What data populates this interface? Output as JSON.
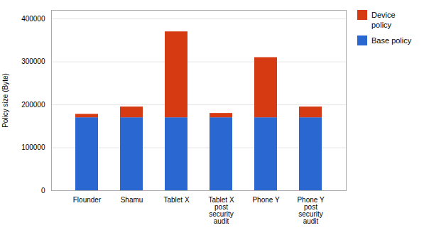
{
  "chart_data": {
    "type": "bar",
    "stacked": true,
    "categories": [
      "Flounder",
      "Shamu",
      "Tablet X",
      "Tablet X\npost\nsecurity\naudit",
      "Phone Y",
      "Phone Y\npost\nsecurity\naudit"
    ],
    "series": [
      {
        "name": "Base policy",
        "color": "#2b67d1",
        "values": [
          170000,
          170000,
          170000,
          170000,
          170000,
          170000
        ]
      },
      {
        "name": "Device\npolicy",
        "color": "#d63a12",
        "values": [
          8000,
          25000,
          200000,
          10000,
          140000,
          25000
        ]
      }
    ],
    "ylabel": "Policy size (Byte)",
    "ylim": [
      0,
      420000
    ],
    "yticks": [
      0,
      100000,
      200000,
      300000,
      400000
    ],
    "grid": true,
    "legend": "upper right"
  }
}
